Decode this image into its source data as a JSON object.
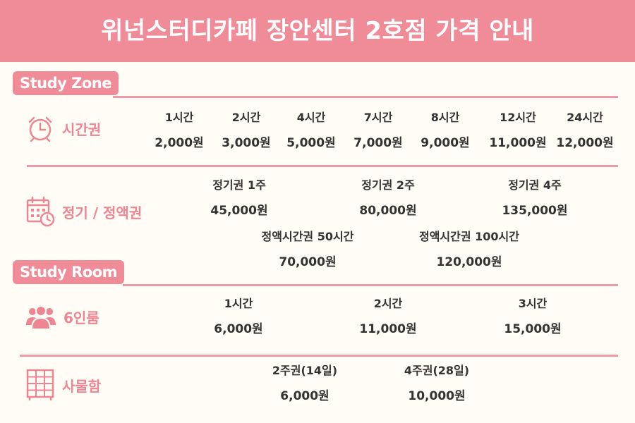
{
  "title": "위넌스터디카페 장안센터 2호점 가격 안내",
  "colors": {
    "accent": "#f08b98",
    "icon": "#ee8593",
    "text": "#333333",
    "background": "#fffdf5"
  },
  "study_zone": {
    "tag": "Study Zone",
    "time_pass": {
      "category": "시간권",
      "icon": "alarm-clock-icon",
      "items": [
        {
          "label": "1시간",
          "price": "2,000원"
        },
        {
          "label": "2시간",
          "price": "3,000원"
        },
        {
          "label": "4시간",
          "price": "5,000원"
        },
        {
          "label": "7시간",
          "price": "7,000원"
        },
        {
          "label": "8시간",
          "price": "9,000원"
        },
        {
          "label": "12시간",
          "price": "11,000원"
        },
        {
          "label": "24시간",
          "price": "12,000원"
        }
      ]
    },
    "period_pass": {
      "category": "정기 / 정액권",
      "icon": "calendar-clock-icon",
      "items": [
        {
          "label": "정기권 1주",
          "price": "45,000원"
        },
        {
          "label": "정기권 2주",
          "price": "80,000원"
        },
        {
          "label": "정기권 4주",
          "price": "135,000원"
        },
        {
          "label": "정액시간권 50시간",
          "price": "70,000원"
        },
        {
          "label": "정액시간권 100시간",
          "price": "120,000원"
        }
      ]
    }
  },
  "study_room": {
    "tag": "Study Room",
    "room6": {
      "category": "6인룸",
      "icon": "group-people-icon",
      "items": [
        {
          "label": "1시간",
          "price": "6,000원"
        },
        {
          "label": "2시간",
          "price": "11,000원"
        },
        {
          "label": "3시간",
          "price": "15,000원"
        }
      ]
    },
    "locker": {
      "category": "사물함",
      "icon": "locker-icon",
      "items": [
        {
          "label": "2주권(14일)",
          "price": "6,000원"
        },
        {
          "label": "4주권(28일)",
          "price": "10,000원"
        }
      ]
    }
  }
}
